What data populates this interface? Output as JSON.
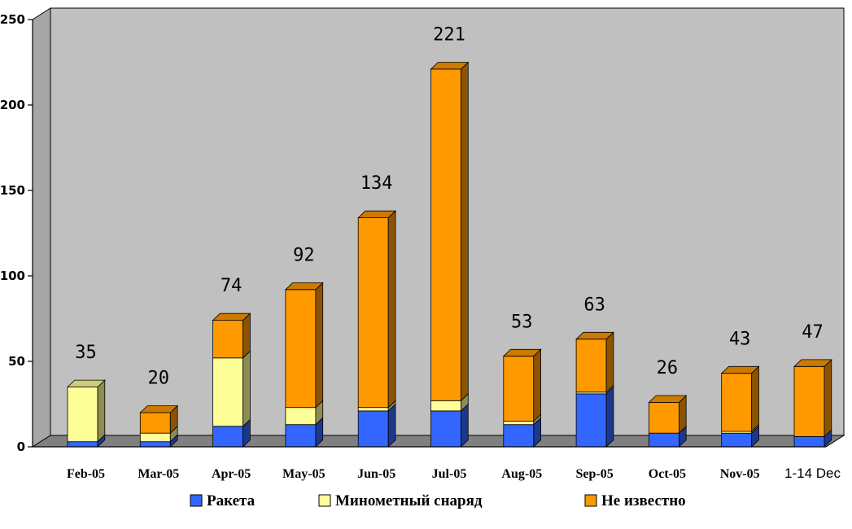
{
  "chart_data": {
    "type": "bar",
    "stacked": true,
    "three_d": true,
    "categories": [
      "Feb-05",
      "Mar-05",
      "Apr-05",
      "May-05",
      "Jun-05",
      "Jul-05",
      "Aug-05",
      "Sep-05",
      "Oct-05",
      "Nov-05",
      "1-14 Dec"
    ],
    "series": [
      {
        "name": "Ракета",
        "color": "#3366ff",
        "values": [
          3,
          3,
          12,
          13,
          21,
          21,
          13,
          31,
          8,
          8,
          6
        ]
      },
      {
        "name": "Минометный снаряд",
        "color": "#ffff99",
        "values": [
          32,
          5,
          40,
          10,
          2,
          6,
          2,
          1,
          0,
          1,
          0
        ]
      },
      {
        "name": "Не известно",
        "color": "#ff9900",
        "values": [
          0,
          12,
          22,
          69,
          111,
          194,
          38,
          31,
          18,
          34,
          41
        ]
      }
    ],
    "totals": [
      "35",
      "20",
      "74",
      "92",
      "134",
      "221",
      "53",
      "63",
      "26",
      "43",
      "47"
    ],
    "ylim": [
      0,
      250
    ],
    "yticks": [
      "0",
      "50",
      "100",
      "150",
      "200",
      "250"
    ],
    "plot_background": "#c0c0c0",
    "grid": false,
    "legend_position": "bottom"
  }
}
